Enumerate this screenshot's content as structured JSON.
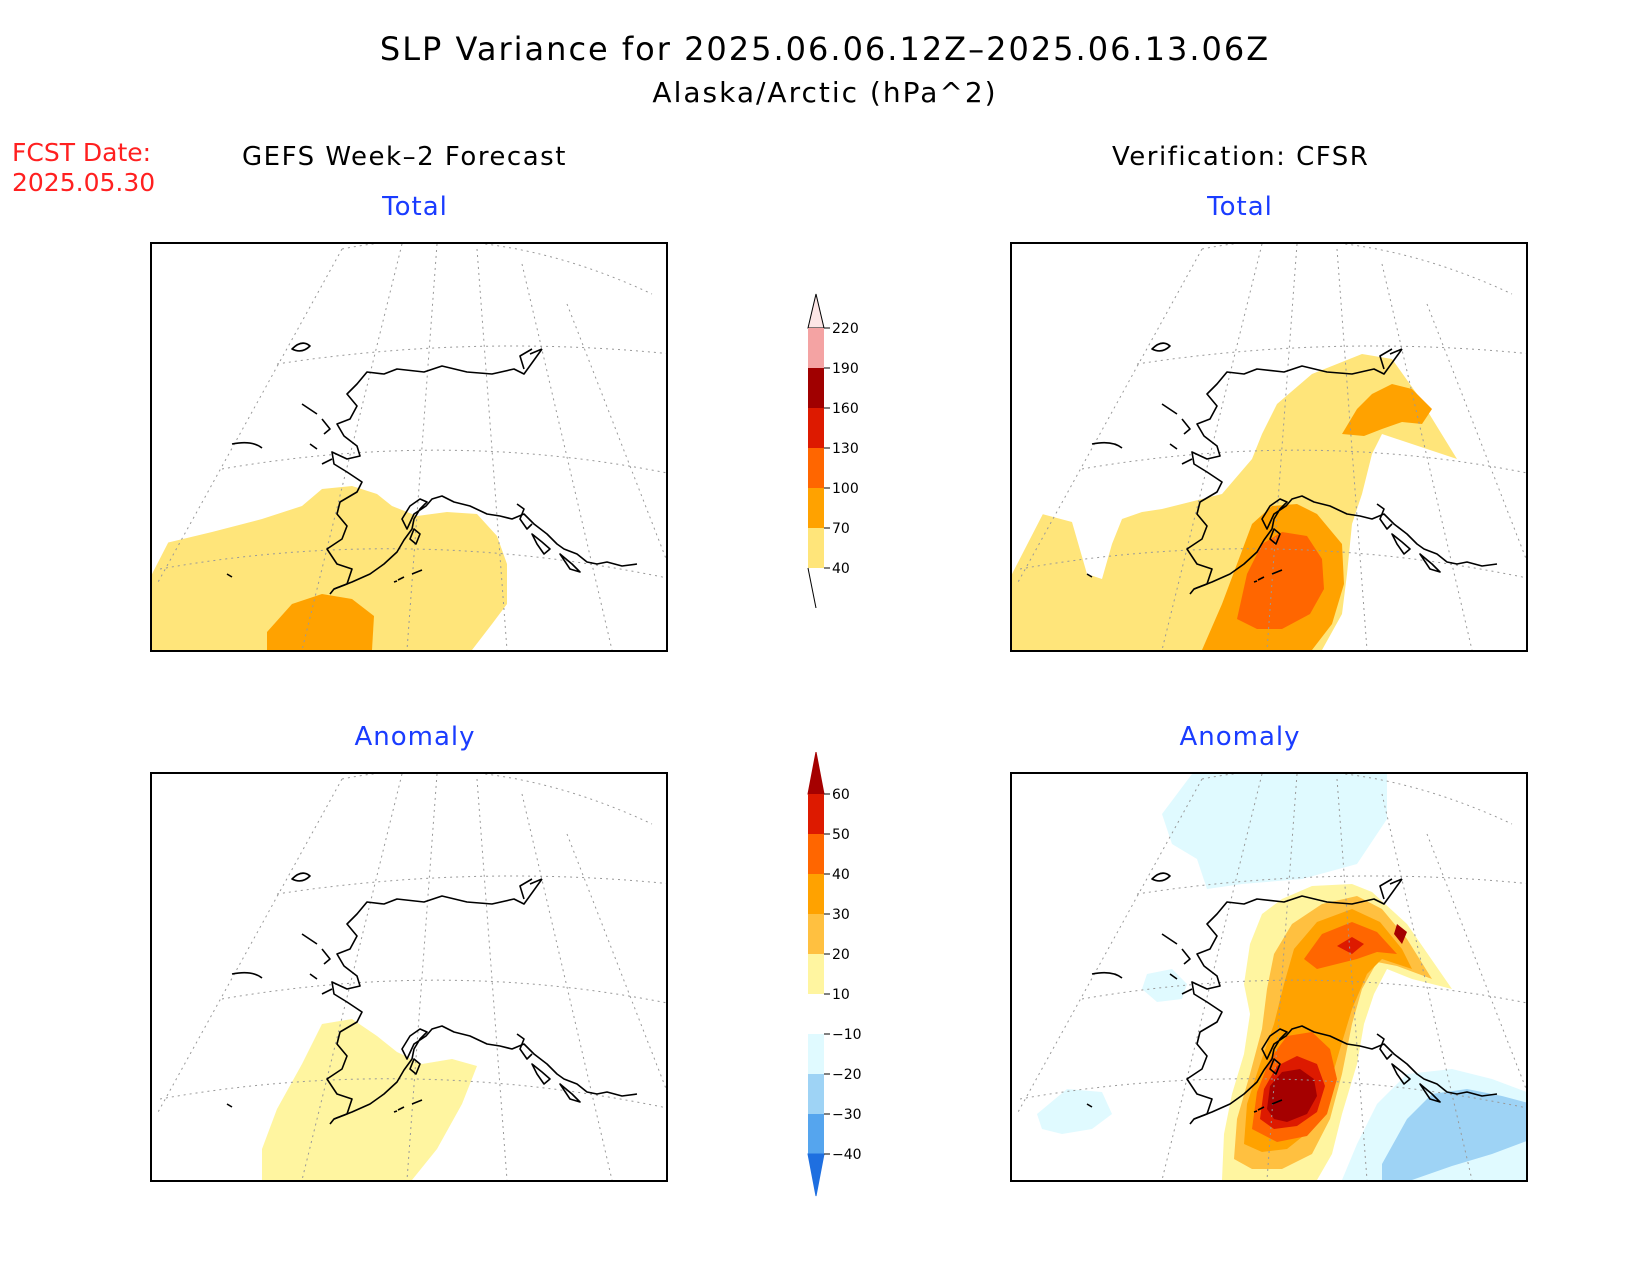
{
  "title": "SLP Variance for 2025.06.06.12Z–2025.06.13.06Z",
  "subtitle": "Alaska/Arctic (hPa^2)",
  "fcst_date": {
    "label": "FCST Date:",
    "value": "2025.05.30"
  },
  "columns": {
    "left": "GEFS Week–2 Forecast",
    "right": "Verification: CFSR"
  },
  "panels": {
    "forecast_total": "Total",
    "verification_total": "Total",
    "forecast_anomaly": "Anomaly",
    "verification_anomaly": "Anomaly"
  },
  "colorbars": {
    "total": {
      "labels": [
        "220",
        "190",
        "160",
        "130",
        "100",
        "70",
        "40"
      ],
      "colors": [
        "#fde6e6",
        "#f4a3a3",
        "#a00000",
        "#dd1a00",
        "#ff6600",
        "#ffa200",
        "#ffe57a"
      ]
    },
    "anomaly": {
      "labels": [
        "60",
        "50",
        "40",
        "30",
        "20",
        "10",
        "−10",
        "−20",
        "−30",
        "−40"
      ],
      "colors": [
        "#a50000",
        "#dd1a00",
        "#ff6600",
        "#ffa200",
        "#ffc040",
        "#fff5a0",
        "#ffffff",
        "#e0faff",
        "#9ed3f5",
        "#55a5ee",
        "#1e6fe0"
      ]
    }
  },
  "colors": {
    "title_text": "#000000",
    "fcst_text": "#ff2020",
    "panel_title": "#1a3cff"
  }
}
